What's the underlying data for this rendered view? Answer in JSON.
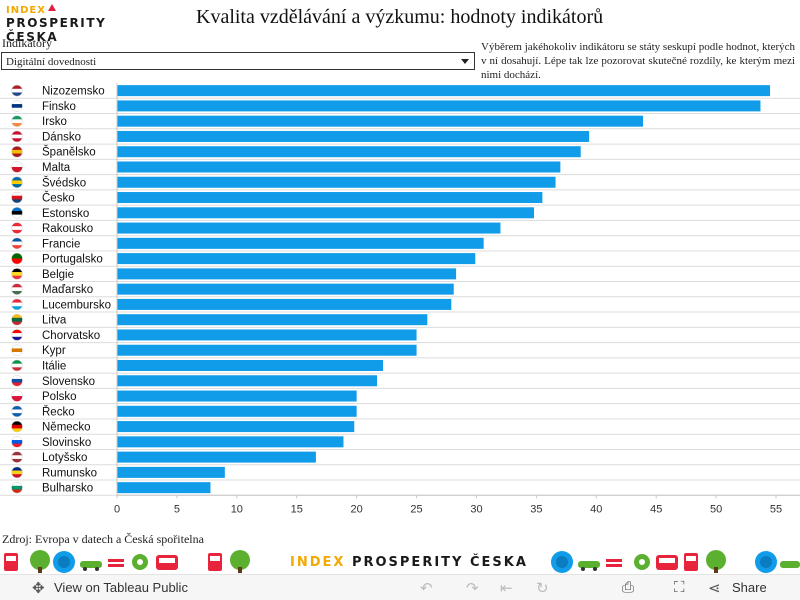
{
  "logo": {
    "line1": "INDEX",
    "line2": "PROSPERITY ČESKA"
  },
  "title": "Kvalita vzdělávání a výzkumu: hodnoty indikátorů",
  "indicator_label": "Indikátory",
  "dropdown_value": "Digitální dovednosti",
  "description": "Výběrem jakéhokoliv indikátoru se státy seskupí podle hodnot, kterých v ní dosahují. Lépe tak lze pozorovat skutečné rozdíly, ke kterým mezi nimi dochází.",
  "source": "Zdroj: Evropa v datech a Česká spořitelna",
  "footer_logo": {
    "part1": "INDEX",
    "part2": "PROSPERITY ČESKA"
  },
  "toolbar": {
    "view_label": "View on Tableau Public",
    "share_label": "Share"
  },
  "colors": {
    "bar": "#109ce8",
    "row_line": "#dcdcdc"
  },
  "chart_data": {
    "type": "bar",
    "orientation": "horizontal",
    "categories": [
      "Nizozemsko",
      "Finsko",
      "Irsko",
      "Dánsko",
      "Španělsko",
      "Malta",
      "Švédsko",
      "Česko",
      "Estonsko",
      "Rakousko",
      "Francie",
      "Portugalsko",
      "Belgie",
      "Maďarsko",
      "Lucembursko",
      "Litva",
      "Chorvatsko",
      "Kypr",
      "Itálie",
      "Slovensko",
      "Polsko",
      "Řecko",
      "Německo",
      "Slovinsko",
      "Lotyšsko",
      "Rumunsko",
      "Bulharsko"
    ],
    "values": [
      54.5,
      53.7,
      43.9,
      39.4,
      38.7,
      37.0,
      36.6,
      35.5,
      34.8,
      32.0,
      30.6,
      29.9,
      28.3,
      28.1,
      27.9,
      25.9,
      25.0,
      25.0,
      22.2,
      21.7,
      20.0,
      20.0,
      19.8,
      18.9,
      16.6,
      9.0,
      7.8
    ],
    "xlim": [
      0,
      57
    ],
    "xticks": [
      0,
      5,
      10,
      15,
      20,
      25,
      30,
      35,
      40,
      45,
      50,
      55
    ],
    "flags": [
      [
        "#ae1c28",
        "#ffffff",
        "#21468b"
      ],
      [
        "#ffffff",
        "#003580",
        "#ffffff"
      ],
      [
        "#169b62",
        "#ffffff",
        "#ff883e"
      ],
      [
        "#c8102e",
        "#ffffff",
        "#c8102e"
      ],
      [
        "#aa151b",
        "#f1bf00",
        "#aa151b"
      ],
      [
        "#ffffff",
        "#cf142b"
      ],
      [
        "#006aa7",
        "#fecc00",
        "#006aa7"
      ],
      [
        "#ffffff",
        "#d7141a",
        "#11457e"
      ],
      [
        "#0072ce",
        "#000000",
        "#ffffff"
      ],
      [
        "#ed2939",
        "#ffffff",
        "#ed2939"
      ],
      [
        "#0055a4",
        "#ffffff",
        "#ef4135"
      ],
      [
        "#006600",
        "#ff0000"
      ],
      [
        "#000000",
        "#fdda24",
        "#ef3340"
      ],
      [
        "#ce2939",
        "#ffffff",
        "#477050"
      ],
      [
        "#ed2939",
        "#ffffff",
        "#00a1de"
      ],
      [
        "#fdb913",
        "#006a44",
        "#c1272d"
      ],
      [
        "#ff0000",
        "#ffffff",
        "#171796"
      ],
      [
        "#ffffff",
        "#d57800",
        "#ffffff"
      ],
      [
        "#009246",
        "#ffffff",
        "#ce2b37"
      ],
      [
        "#ffffff",
        "#0b4ea2",
        "#ee1c25"
      ],
      [
        "#ffffff",
        "#dc143c"
      ],
      [
        "#0d5eaf",
        "#ffffff",
        "#0d5eaf"
      ],
      [
        "#000000",
        "#dd0000",
        "#ffce00"
      ],
      [
        "#ffffff",
        "#005ce5",
        "#ed1c24"
      ],
      [
        "#9e3039",
        "#ffffff",
        "#9e3039"
      ],
      [
        "#002b7f",
        "#fcd116",
        "#ce1126"
      ],
      [
        "#ffffff",
        "#00966e",
        "#d62612"
      ]
    ]
  }
}
